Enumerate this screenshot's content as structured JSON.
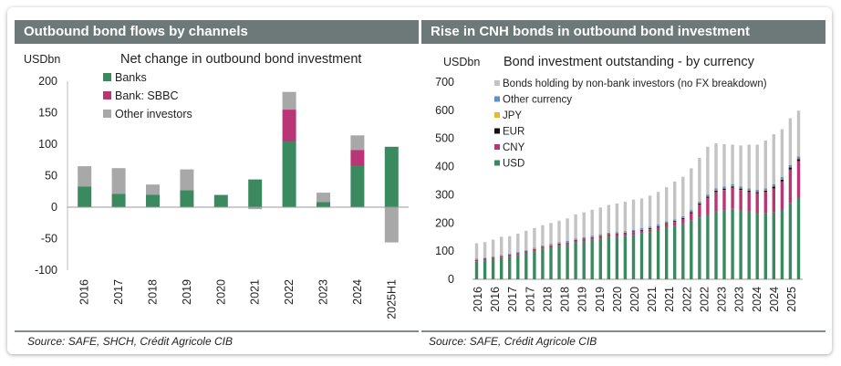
{
  "left_panel": {
    "header": "Outbound bond flows by channels",
    "source": "Source: SAFE, SHCH, Crédit Agricole CIB"
  },
  "right_panel": {
    "header": "Rise in CNH bonds in outbound bond investment",
    "source": "Source: SAFE, Crédit Agricole CIB"
  },
  "chart_data": [
    {
      "type": "bar",
      "stacked": true,
      "title": "Net change in outbound bond investment",
      "ylabel": "USDbn",
      "ylim": [
        -100,
        200
      ],
      "yticks": [
        -100,
        -50,
        0,
        50,
        100,
        150,
        200
      ],
      "legend_position": "top-left",
      "categories": [
        "2016",
        "2017",
        "2018",
        "2019",
        "2020",
        "2021",
        "2022",
        "2023",
        "2024",
        "2025H1"
      ],
      "series": [
        {
          "name": "Banks",
          "color": "#3b8a5f",
          "values": [
            33,
            21,
            20,
            27,
            19,
            44,
            105,
            8,
            66,
            96
          ]
        },
        {
          "name": "Bank: SBBC",
          "color": "#b83576",
          "values": [
            0,
            0,
            0,
            0,
            0,
            0,
            50,
            0,
            25,
            0
          ]
        },
        {
          "name": "Other investors",
          "color": "#a8a8a8",
          "values": [
            32,
            41,
            16,
            33,
            1,
            -3,
            28,
            15,
            23,
            -56
          ]
        }
      ]
    },
    {
      "type": "bar",
      "stacked": true,
      "title": "Bond investment outstanding - by currency",
      "ylabel": "USDbn",
      "ylim": [
        0,
        700
      ],
      "yticks": [
        0,
        100,
        200,
        300,
        400,
        500,
        600,
        700
      ],
      "legend_position": "top-left",
      "x_tick_labels": [
        "2016",
        "2016",
        "2017",
        "2017",
        "2018",
        "2018",
        "2019",
        "2019",
        "2020",
        "2020",
        "2021",
        "2021",
        "2022",
        "2022",
        "2023",
        "2023",
        "2024",
        "2024",
        "2025"
      ],
      "periods": 40,
      "series": [
        {
          "name": "USD",
          "color": "#3b8a5f",
          "values": [
            62,
            66,
            70,
            75,
            80,
            85,
            92,
            100,
            108,
            112,
            118,
            122,
            130,
            135,
            140,
            145,
            150,
            152,
            155,
            158,
            163,
            168,
            175,
            185,
            190,
            198,
            210,
            220,
            230,
            240,
            245,
            250,
            245,
            240,
            235,
            235,
            238,
            248,
            270,
            290
          ]
        },
        {
          "name": "CNY",
          "color": "#b83576",
          "values": [
            5,
            5,
            5,
            5,
            5,
            6,
            6,
            6,
            6,
            7,
            7,
            7,
            8,
            8,
            8,
            8,
            9,
            9,
            9,
            10,
            10,
            10,
            11,
            12,
            14,
            16,
            25,
            45,
            60,
            70,
            72,
            75,
            72,
            70,
            70,
            75,
            85,
            100,
            120,
            130
          ]
        },
        {
          "name": "EUR",
          "color": "#111111",
          "values": [
            2,
            2,
            2,
            2,
            2,
            2,
            2,
            2,
            2,
            2,
            2,
            2,
            2,
            2,
            2,
            2,
            2,
            2,
            2,
            2,
            3,
            3,
            3,
            3,
            3,
            3,
            4,
            4,
            4,
            5,
            5,
            5,
            5,
            5,
            5,
            5,
            6,
            6,
            7,
            7
          ]
        },
        {
          "name": "JPY",
          "color": "#e8b830",
          "values": [
            1,
            1,
            1,
            1,
            1,
            1,
            1,
            1,
            1,
            1,
            1,
            1,
            1,
            1,
            1,
            1,
            1,
            1,
            1,
            1,
            1,
            1,
            1,
            1,
            1,
            1,
            1,
            1,
            1,
            1,
            1,
            1,
            1,
            1,
            1,
            1,
            1,
            1,
            1,
            1
          ]
        },
        {
          "name": "Other currency",
          "color": "#5e8fc7",
          "values": [
            3,
            3,
            3,
            3,
            3,
            3,
            3,
            3,
            3,
            4,
            4,
            4,
            4,
            4,
            4,
            4,
            4,
            4,
            4,
            4,
            5,
            5,
            5,
            5,
            5,
            6,
            6,
            6,
            6,
            7,
            7,
            7,
            7,
            7,
            7,
            7,
            8,
            8,
            8,
            8
          ]
        },
        {
          "name": "Bonds holding by non-bank investors (no FX breakdown)",
          "color": "#c3c3c3",
          "values": [
            55,
            55,
            60,
            65,
            62,
            65,
            68,
            70,
            72,
            74,
            76,
            80,
            85,
            88,
            92,
            95,
            98,
            101,
            104,
            108,
            105,
            110,
            115,
            121,
            134,
            140,
            148,
            155,
            170,
            160,
            150,
            140,
            145,
            155,
            160,
            170,
            177,
            170,
            166,
            163
          ]
        }
      ]
    }
  ]
}
